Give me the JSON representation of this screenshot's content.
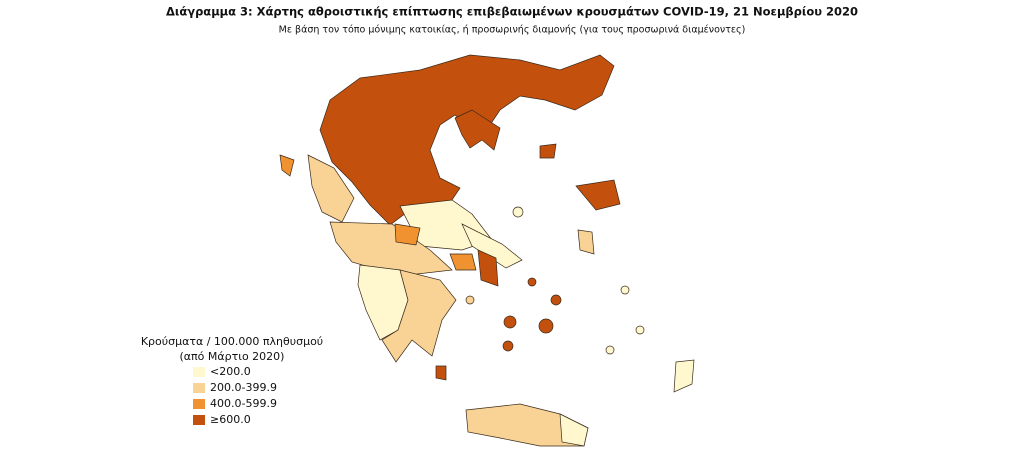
{
  "header": {
    "title": "Διάγραμμα 3: Χάρτης αθροιστικής επίπτωσης επιβεβαιωμένων κρουσμάτων COVID-19, 21 Νοεμβρίου 2020",
    "subtitle": "Με βάση τον τόπο μόνιμης κατοικίας, ή προσωρινής διαμονής (για τους προσωρινά διαμένοντες)"
  },
  "legend": {
    "title": "Κρούσματα / 100.000 πληθυσμού",
    "subtitle": "(από Μάρτιο 2020)",
    "items": [
      {
        "label": "<200.0",
        "color": "#fff8cf"
      },
      {
        "label": "200.0-399.9",
        "color": "#f8d395"
      },
      {
        "label": "400.0-599.9",
        "color": "#f0922f"
      },
      {
        "label": "≥600.0",
        "color": "#c4500d"
      }
    ]
  }
}
